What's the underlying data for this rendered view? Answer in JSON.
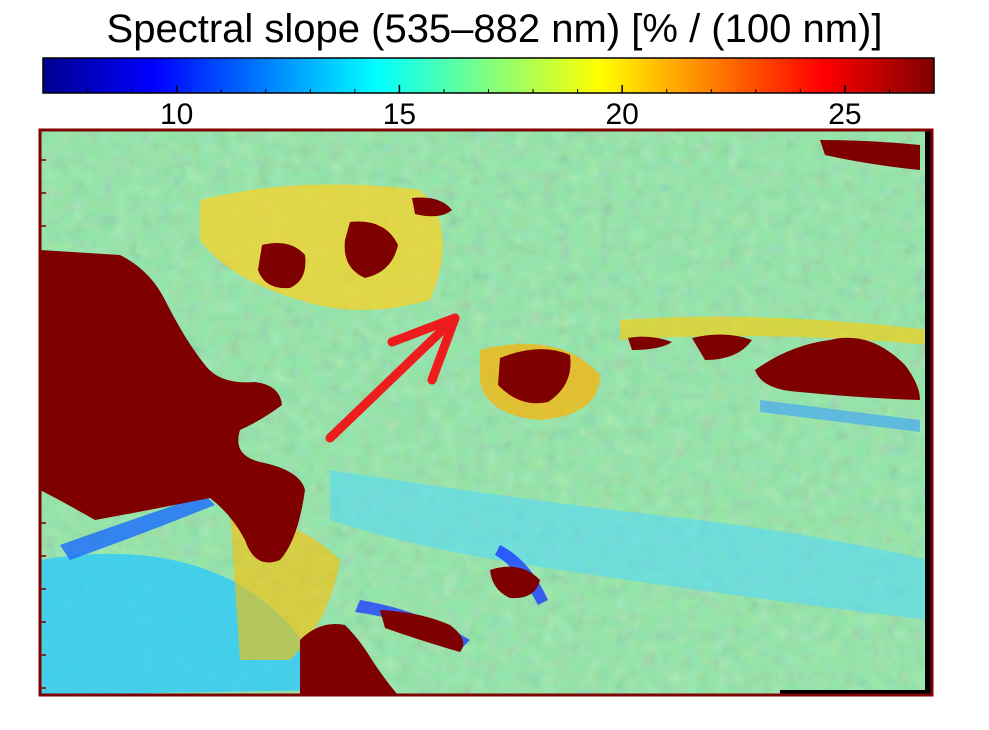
{
  "chart_data": {
    "type": "heatmap",
    "title": "Spectral slope (535–882 nm) [% / (100 nm)]",
    "colormap": "jet",
    "colorbar": {
      "orientation": "horizontal",
      "placement": "top",
      "range": [
        7,
        27
      ],
      "ticks": [
        10,
        15,
        20,
        25
      ],
      "tick_labels": [
        "10",
        "15",
        "20",
        "25"
      ]
    },
    "dominant_value": 17,
    "annotation": {
      "kind": "arrow",
      "color": "#ee1c1c",
      "direction": "up-right"
    }
  }
}
